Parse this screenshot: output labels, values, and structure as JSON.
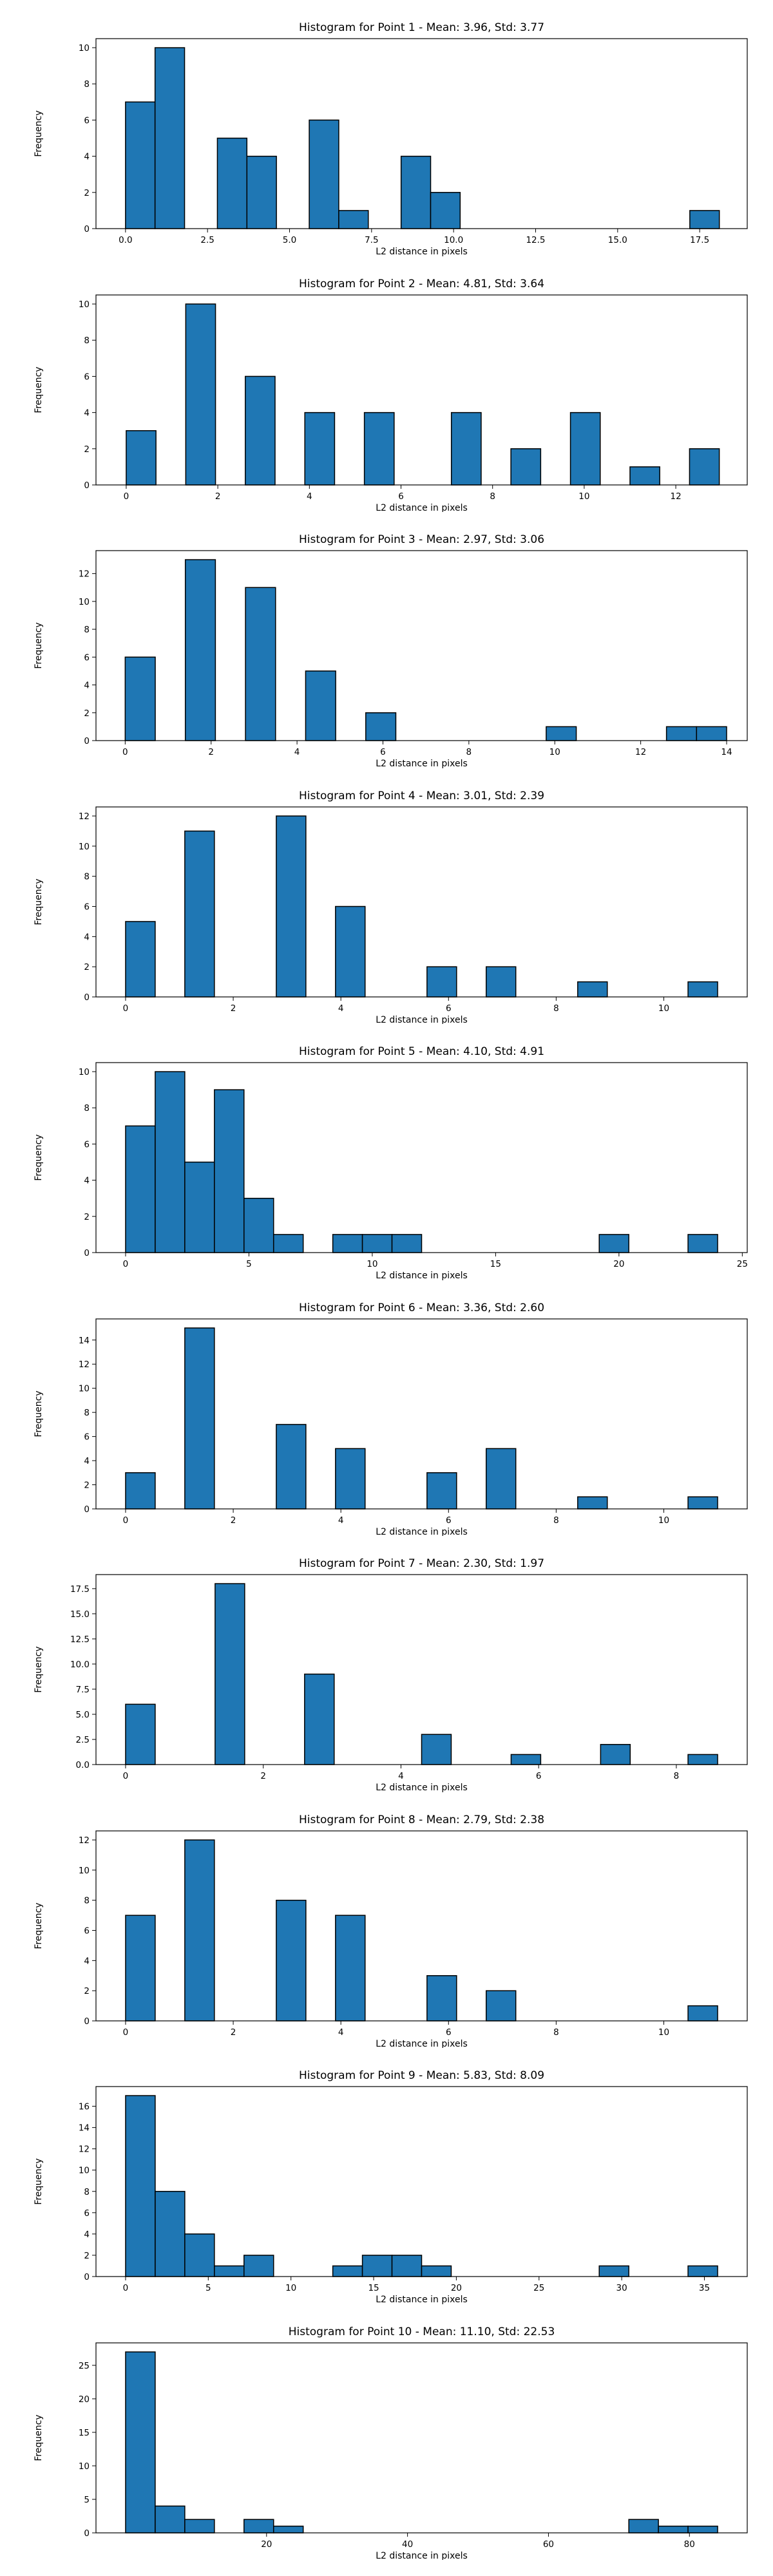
{
  "chart_data": [
    {
      "type": "bar",
      "title": "Histogram for Point 1 - Mean: 3.96, Std: 3.77",
      "xlabel": "L2 distance in pixels",
      "ylabel": "Frequency",
      "xlim": [
        -0.9,
        18.95
      ],
      "ylim": [
        0,
        10.5
      ],
      "xticks": [
        0.0,
        2.5,
        5.0,
        7.5,
        10.0,
        12.5,
        15.0,
        17.5
      ],
      "xtick_labels": [
        "0.0",
        "2.5",
        "5.0",
        "7.5",
        "10.0",
        "12.5",
        "15.0",
        "17.5"
      ],
      "yticks": [
        0,
        2,
        4,
        6,
        8,
        10
      ],
      "bins": [
        {
          "x0": 0.0,
          "x1": 0.9,
          "count": 7
        },
        {
          "x0": 0.9,
          "x1": 1.8,
          "count": 10
        },
        {
          "x0": 2.8,
          "x1": 3.7,
          "count": 5
        },
        {
          "x0": 3.7,
          "x1": 4.6,
          "count": 4
        },
        {
          "x0": 5.6,
          "x1": 6.5,
          "count": 6
        },
        {
          "x0": 6.5,
          "x1": 7.4,
          "count": 1
        },
        {
          "x0": 8.4,
          "x1": 9.3,
          "count": 4
        },
        {
          "x0": 9.3,
          "x1": 10.2,
          "count": 2
        },
        {
          "x0": 17.2,
          "x1": 18.1,
          "count": 1
        }
      ],
      "grid": false,
      "bar_color": "#1f77b4"
    },
    {
      "type": "bar",
      "title": "Histogram for Point 2 - Mean: 4.81, Std: 3.64",
      "xlabel": "L2 distance in pixels",
      "ylabel": "Frequency",
      "xlim": [
        -0.66,
        13.56
      ],
      "ylim": [
        0,
        10.5
      ],
      "xticks": [
        0,
        2,
        4,
        6,
        8,
        10,
        12
      ],
      "xtick_labels": [
        "0",
        "2",
        "4",
        "6",
        "8",
        "10",
        "12"
      ],
      "yticks": [
        0,
        2,
        4,
        6,
        8,
        10
      ],
      "bins": [
        {
          "x0": 0.0,
          "x1": 0.65,
          "count": 3
        },
        {
          "x0": 1.3,
          "x1": 1.95,
          "count": 10
        },
        {
          "x0": 2.6,
          "x1": 3.25,
          "count": 6
        },
        {
          "x0": 3.9,
          "x1": 4.55,
          "count": 4
        },
        {
          "x0": 5.2,
          "x1": 5.85,
          "count": 4
        },
        {
          "x0": 7.1,
          "x1": 7.75,
          "count": 4
        },
        {
          "x0": 8.4,
          "x1": 9.05,
          "count": 2
        },
        {
          "x0": 9.7,
          "x1": 10.35,
          "count": 4
        },
        {
          "x0": 11.0,
          "x1": 11.65,
          "count": 1
        },
        {
          "x0": 12.3,
          "x1": 12.95,
          "count": 2
        }
      ],
      "grid": false,
      "bar_color": "#1f77b4"
    },
    {
      "type": "bar",
      "title": "Histogram for Point 3 - Mean: 2.97, Std: 3.06",
      "xlabel": "L2 distance in pixels",
      "ylabel": "Frequency",
      "xlim": [
        -0.68,
        14.48
      ],
      "ylim": [
        0,
        13.65
      ],
      "xticks": [
        0,
        2,
        4,
        6,
        8,
        10,
        12,
        14
      ],
      "xtick_labels": [
        "0",
        "2",
        "4",
        "6",
        "8",
        "10",
        "12",
        "14"
      ],
      "yticks": [
        0,
        2,
        4,
        6,
        8,
        10,
        12
      ],
      "bins": [
        {
          "x0": 0.0,
          "x1": 0.7,
          "count": 6
        },
        {
          "x0": 1.4,
          "x1": 2.1,
          "count": 13
        },
        {
          "x0": 2.8,
          "x1": 3.5,
          "count": 11
        },
        {
          "x0": 4.2,
          "x1": 4.9,
          "count": 5
        },
        {
          "x0": 5.6,
          "x1": 6.3,
          "count": 2
        },
        {
          "x0": 9.8,
          "x1": 10.5,
          "count": 1
        },
        {
          "x0": 12.6,
          "x1": 13.3,
          "count": 1
        },
        {
          "x0": 13.3,
          "x1": 14.0,
          "count": 1
        }
      ],
      "grid": false,
      "bar_color": "#1f77b4"
    },
    {
      "type": "bar",
      "title": "Histogram for Point 4 - Mean: 3.01, Std: 2.39",
      "xlabel": "L2 distance in pixels",
      "ylabel": "Frequency",
      "xlim": [
        -0.55,
        11.55
      ],
      "ylim": [
        0,
        12.6
      ],
      "xticks": [
        0,
        2,
        4,
        6,
        8,
        10
      ],
      "xtick_labels": [
        "0",
        "2",
        "4",
        "6",
        "8",
        "10"
      ],
      "yticks": [
        0,
        2,
        4,
        6,
        8,
        10,
        12
      ],
      "bins": [
        {
          "x0": 0.0,
          "x1": 0.55,
          "count": 5
        },
        {
          "x0": 1.1,
          "x1": 1.65,
          "count": 11
        },
        {
          "x0": 2.8,
          "x1": 3.35,
          "count": 12
        },
        {
          "x0": 3.9,
          "x1": 4.45,
          "count": 6
        },
        {
          "x0": 5.6,
          "x1": 6.15,
          "count": 2
        },
        {
          "x0": 6.7,
          "x1": 7.25,
          "count": 2
        },
        {
          "x0": 8.4,
          "x1": 8.95,
          "count": 1
        },
        {
          "x0": 10.45,
          "x1": 11.0,
          "count": 1
        }
      ],
      "grid": false,
      "bar_color": "#1f77b4"
    },
    {
      "type": "bar",
      "title": "Histogram for Point 5 - Mean: 4.10, Std: 4.91",
      "xlabel": "L2 distance in pixels",
      "ylabel": "Frequency",
      "xlim": [
        -1.2,
        25.2
      ],
      "ylim": [
        0,
        10.5
      ],
      "xticks": [
        0,
        5,
        10,
        15,
        20,
        25
      ],
      "xtick_labels": [
        "0",
        "5",
        "10",
        "15",
        "20",
        "25"
      ],
      "yticks": [
        0,
        2,
        4,
        6,
        8,
        10
      ],
      "bins": [
        {
          "x0": 0.0,
          "x1": 1.2,
          "count": 7
        },
        {
          "x0": 1.2,
          "x1": 2.4,
          "count": 10
        },
        {
          "x0": 2.4,
          "x1": 3.6,
          "count": 5
        },
        {
          "x0": 3.6,
          "x1": 4.8,
          "count": 9
        },
        {
          "x0": 4.8,
          "x1": 6.0,
          "count": 3
        },
        {
          "x0": 6.0,
          "x1": 7.2,
          "count": 1
        },
        {
          "x0": 8.4,
          "x1": 9.6,
          "count": 1
        },
        {
          "x0": 9.6,
          "x1": 10.8,
          "count": 1
        },
        {
          "x0": 10.8,
          "x1": 12.0,
          "count": 1
        },
        {
          "x0": 19.2,
          "x1": 20.4,
          "count": 1
        },
        {
          "x0": 22.8,
          "x1": 24.0,
          "count": 1
        }
      ],
      "grid": false,
      "bar_color": "#1f77b4"
    },
    {
      "type": "bar",
      "title": "Histogram for Point 6 - Mean: 3.36, Std: 2.60",
      "xlabel": "L2 distance in pixels",
      "ylabel": "Frequency",
      "xlim": [
        -0.55,
        11.55
      ],
      "ylim": [
        0,
        15.75
      ],
      "xticks": [
        0,
        2,
        4,
        6,
        8,
        10
      ],
      "xtick_labels": [
        "0",
        "2",
        "4",
        "6",
        "8",
        "10"
      ],
      "yticks": [
        0,
        2,
        4,
        6,
        8,
        10,
        12,
        14
      ],
      "bins": [
        {
          "x0": 0.0,
          "x1": 0.55,
          "count": 3
        },
        {
          "x0": 1.1,
          "x1": 1.65,
          "count": 15
        },
        {
          "x0": 2.8,
          "x1": 3.35,
          "count": 7
        },
        {
          "x0": 3.9,
          "x1": 4.45,
          "count": 5
        },
        {
          "x0": 5.6,
          "x1": 6.15,
          "count": 3
        },
        {
          "x0": 6.7,
          "x1": 7.25,
          "count": 5
        },
        {
          "x0": 8.4,
          "x1": 8.95,
          "count": 1
        },
        {
          "x0": 10.45,
          "x1": 11.0,
          "count": 1
        }
      ],
      "grid": false,
      "bar_color": "#1f77b4"
    },
    {
      "type": "bar",
      "title": "Histogram for Point 7 - Mean: 2.30, Std: 1.97",
      "xlabel": "L2 distance in pixels",
      "ylabel": "Frequency",
      "xlim": [
        -0.43,
        9.03
      ],
      "ylim": [
        0,
        18.9
      ],
      "xticks": [
        0,
        2,
        4,
        6,
        8
      ],
      "xtick_labels": [
        "0",
        "2",
        "4",
        "6",
        "8"
      ],
      "yticks": [
        0.0,
        2.5,
        5.0,
        7.5,
        10.0,
        12.5,
        15.0,
        17.5
      ],
      "ytick_labels": [
        "0.0",
        "2.5",
        "5.0",
        "7.5",
        "10.0",
        "12.5",
        "15.0",
        "17.5"
      ],
      "bins": [
        {
          "x0": 0.0,
          "x1": 0.43,
          "count": 6
        },
        {
          "x0": 1.3,
          "x1": 1.73,
          "count": 18
        },
        {
          "x0": 2.6,
          "x1": 3.03,
          "count": 9
        },
        {
          "x0": 4.3,
          "x1": 4.73,
          "count": 3
        },
        {
          "x0": 5.6,
          "x1": 6.03,
          "count": 1
        },
        {
          "x0": 6.9,
          "x1": 7.33,
          "count": 2
        },
        {
          "x0": 8.17,
          "x1": 8.6,
          "count": 1
        }
      ],
      "grid": false,
      "bar_color": "#1f77b4"
    },
    {
      "type": "bar",
      "title": "Histogram for Point 8 - Mean: 2.79, Std: 2.38",
      "xlabel": "L2 distance in pixels",
      "ylabel": "Frequency",
      "xlim": [
        -0.55,
        11.55
      ],
      "ylim": [
        0,
        12.6
      ],
      "xticks": [
        0,
        2,
        4,
        6,
        8,
        10
      ],
      "xtick_labels": [
        "0",
        "2",
        "4",
        "6",
        "8",
        "10"
      ],
      "yticks": [
        0,
        2,
        4,
        6,
        8,
        10,
        12
      ],
      "bins": [
        {
          "x0": 0.0,
          "x1": 0.55,
          "count": 7
        },
        {
          "x0": 1.1,
          "x1": 1.65,
          "count": 12
        },
        {
          "x0": 2.8,
          "x1": 3.35,
          "count": 8
        },
        {
          "x0": 3.9,
          "x1": 4.45,
          "count": 7
        },
        {
          "x0": 5.6,
          "x1": 6.15,
          "count": 3
        },
        {
          "x0": 6.7,
          "x1": 7.25,
          "count": 2
        },
        {
          "x0": 10.45,
          "x1": 11.0,
          "count": 1
        }
      ],
      "grid": false,
      "bar_color": "#1f77b4"
    },
    {
      "type": "bar",
      "title": "Histogram for Point 9 - Mean: 5.83, Std: 8.09",
      "xlabel": "L2 distance in pixels",
      "ylabel": "Frequency",
      "xlim": [
        -1.79,
        37.59
      ],
      "ylim": [
        0,
        17.85
      ],
      "xticks": [
        0,
        5,
        10,
        15,
        20,
        25,
        30,
        35
      ],
      "xtick_labels": [
        "0",
        "5",
        "10",
        "15",
        "20",
        "25",
        "30",
        "35"
      ],
      "yticks": [
        0,
        2,
        4,
        6,
        8,
        10,
        12,
        14,
        16
      ],
      "bins": [
        {
          "x0": 0.0,
          "x1": 1.79,
          "count": 17
        },
        {
          "x0": 1.79,
          "x1": 3.58,
          "count": 8
        },
        {
          "x0": 3.58,
          "x1": 5.37,
          "count": 4
        },
        {
          "x0": 5.37,
          "x1": 7.16,
          "count": 1
        },
        {
          "x0": 7.16,
          "x1": 8.95,
          "count": 2
        },
        {
          "x0": 12.53,
          "x1": 14.32,
          "count": 1
        },
        {
          "x0": 14.32,
          "x1": 16.11,
          "count": 2
        },
        {
          "x0": 16.11,
          "x1": 17.9,
          "count": 2
        },
        {
          "x0": 17.9,
          "x1": 19.69,
          "count": 1
        },
        {
          "x0": 28.64,
          "x1": 30.43,
          "count": 1
        },
        {
          "x0": 34.01,
          "x1": 35.8,
          "count": 1
        }
      ],
      "grid": false,
      "bar_color": "#1f77b4"
    },
    {
      "type": "bar",
      "title": "Histogram for Point 10 - Mean: 11.10, Std: 22.53",
      "xlabel": "L2 distance in pixels",
      "ylabel": "Frequency",
      "xlim": [
        -4.2,
        88.2
      ],
      "ylim": [
        0,
        28.35
      ],
      "xticks": [
        20,
        40,
        60,
        80
      ],
      "xtick_labels": [
        "20",
        "40",
        "60",
        "80"
      ],
      "yticks": [
        0,
        5,
        10,
        15,
        20,
        25
      ],
      "bins": [
        {
          "x0": 0.0,
          "x1": 4.2,
          "count": 27
        },
        {
          "x0": 4.2,
          "x1": 8.4,
          "count": 4
        },
        {
          "x0": 8.4,
          "x1": 12.6,
          "count": 2
        },
        {
          "x0": 16.8,
          "x1": 21.0,
          "count": 2
        },
        {
          "x0": 21.0,
          "x1": 25.2,
          "count": 1
        },
        {
          "x0": 71.4,
          "x1": 75.6,
          "count": 2
        },
        {
          "x0": 75.6,
          "x1": 79.8,
          "count": 1
        },
        {
          "x0": 79.8,
          "x1": 84.0,
          "count": 1
        }
      ],
      "grid": false,
      "bar_color": "#1f77b4"
    }
  ]
}
